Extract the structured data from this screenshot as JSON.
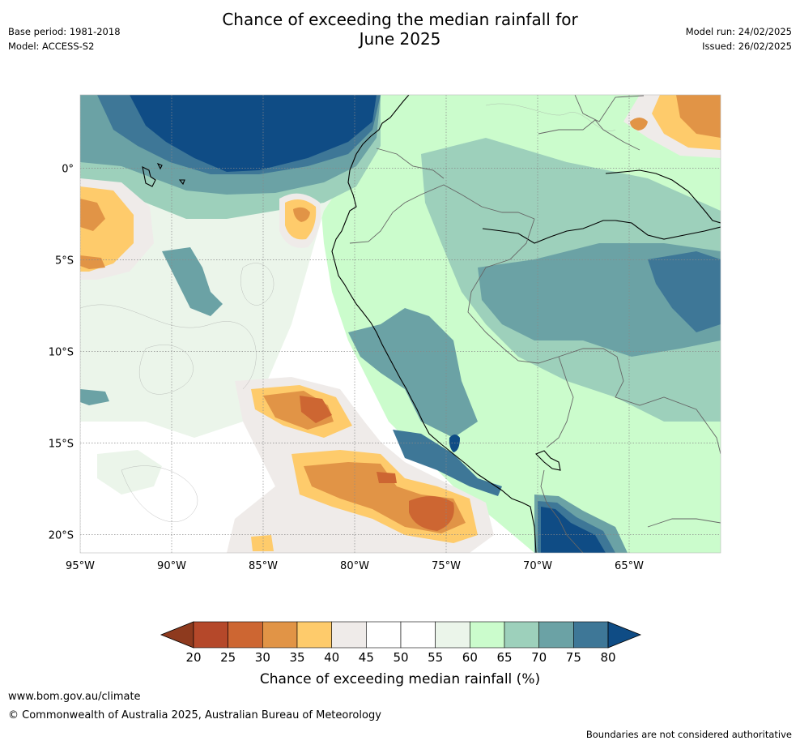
{
  "header": {
    "title_line1": "Chance of exceeding the median rainfall for",
    "title_line2": "June 2025",
    "base_period": "Base period: 1981-2018",
    "model": "Model: ACCESS-S2",
    "model_run": "Model run: 24/02/2025",
    "issued": "Issued: 26/02/2025"
  },
  "map": {
    "lon_labels": [
      "95°W",
      "90°W",
      "85°W",
      "80°W",
      "75°W",
      "70°W",
      "65°W"
    ],
    "lat_labels": [
      "0°",
      "5°S",
      "10°S",
      "15°S",
      "20°S"
    ],
    "lon_values": [
      -95,
      -90,
      -85,
      -80,
      -75,
      -70,
      -65
    ],
    "lat_values": [
      0,
      -5,
      -10,
      -15,
      -20
    ],
    "lon_range": [
      -95,
      -60
    ],
    "lat_range": [
      -21,
      4
    ],
    "grid": true
  },
  "colorbar": {
    "label": "Chance of exceeding median rainfall (%)",
    "ticks": [
      "20",
      "25",
      "30",
      "35",
      "40",
      "45",
      "50",
      "55",
      "60",
      "65",
      "70",
      "75",
      "80"
    ],
    "colors": [
      "#8e3a1e",
      "#b5482a",
      "#cd6632",
      "#e19446",
      "#fecb6b",
      "#efebe9",
      "#ffffff",
      "#ffffff",
      "#ebf5ea",
      "#cbfccc",
      "#9dd0bb",
      "#6ba2a5",
      "#3e7797",
      "#0f4c85"
    ]
  },
  "footer": {
    "url": "www.bom.gov.au/climate",
    "copyright": "© Commonwealth of Australia 2025, Australian Bureau of Meteorology",
    "note": "Boundaries are not considered authoritative"
  }
}
